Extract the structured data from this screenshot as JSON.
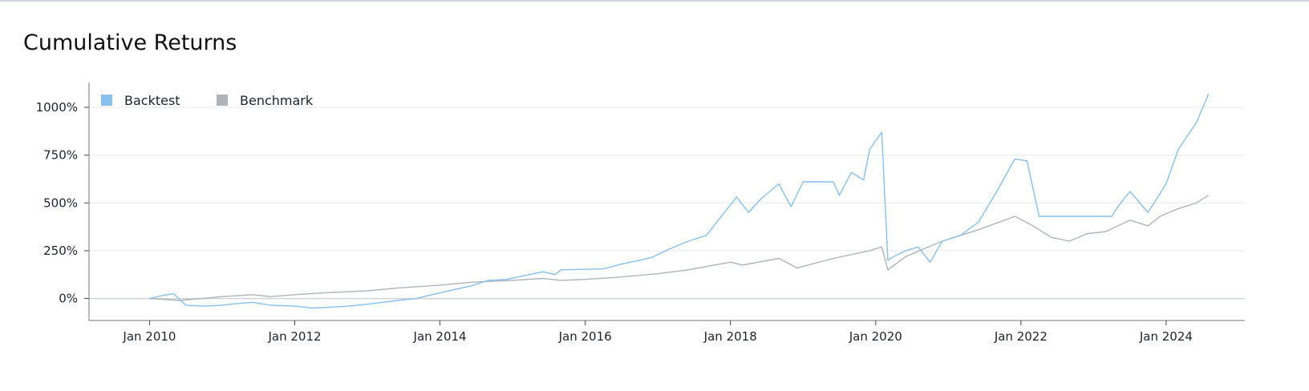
{
  "chart_data": {
    "type": "line",
    "title": "Cumulative Returns",
    "xlabel": "",
    "ylabel": "",
    "grid": "horizontal",
    "legend_position": "top-left",
    "x_ticks": [
      "Jan 2010",
      "Jan 2012",
      "Jan 2014",
      "Jan 2016",
      "Jan 2018",
      "Jan 2020",
      "Jan 2022",
      "Jan 2024"
    ],
    "y_ticks": [
      "0%",
      "250%",
      "500%",
      "750%",
      "1000%"
    ],
    "ylim": [
      -115,
      1130
    ],
    "xlim": [
      "2009-03",
      "2025-02"
    ],
    "series": [
      {
        "name": "Backtest",
        "color": "#86c0ec",
        "points": [
          [
            "2010-01",
            0
          ],
          [
            "2010-03",
            15
          ],
          [
            "2010-05",
            25
          ],
          [
            "2010-07",
            -35
          ],
          [
            "2010-10",
            -40
          ],
          [
            "2011-01",
            -35
          ],
          [
            "2011-03",
            -28
          ],
          [
            "2011-06",
            -20
          ],
          [
            "2011-09",
            -35
          ],
          [
            "2012-01",
            -40
          ],
          [
            "2012-04",
            -50
          ],
          [
            "2012-07",
            -45
          ],
          [
            "2012-10",
            -40
          ],
          [
            "2013-01",
            -30
          ],
          [
            "2013-06",
            -10
          ],
          [
            "2013-09",
            0
          ],
          [
            "2014-01",
            30
          ],
          [
            "2014-06",
            65
          ],
          [
            "2014-09",
            95
          ],
          [
            "2014-12",
            100
          ],
          [
            "2015-03",
            120
          ],
          [
            "2015-06",
            140
          ],
          [
            "2015-08",
            125
          ],
          [
            "2015-09",
            150
          ],
          [
            "2016-04",
            155
          ],
          [
            "2016-07",
            180
          ],
          [
            "2016-10",
            200
          ],
          [
            "2016-12",
            215
          ],
          [
            "2017-03",
            260
          ],
          [
            "2017-06",
            300
          ],
          [
            "2017-09",
            330
          ],
          [
            "2017-12",
            450
          ],
          [
            "2018-02",
            530
          ],
          [
            "2018-04",
            450
          ],
          [
            "2018-06",
            520
          ],
          [
            "2018-09",
            600
          ],
          [
            "2018-11",
            480
          ],
          [
            "2019-01",
            610
          ],
          [
            "2019-06",
            610
          ],
          [
            "2019-07",
            540
          ],
          [
            "2019-09",
            660
          ],
          [
            "2019-11",
            620
          ],
          [
            "2019-12",
            780
          ],
          [
            "2020-02",
            870
          ],
          [
            "2020-03",
            200
          ],
          [
            "2020-04",
            220
          ],
          [
            "2020-06",
            250
          ],
          [
            "2020-08",
            270
          ],
          [
            "2020-10",
            190
          ],
          [
            "2020-12",
            300
          ],
          [
            "2021-03",
            330
          ],
          [
            "2021-06",
            400
          ],
          [
            "2021-09",
            560
          ],
          [
            "2021-12",
            730
          ],
          [
            "2022-02",
            720
          ],
          [
            "2022-04",
            430
          ],
          [
            "2023-04",
            430
          ],
          [
            "2023-05",
            480
          ],
          [
            "2023-07",
            560
          ],
          [
            "2023-10",
            450
          ],
          [
            "2024-01",
            600
          ],
          [
            "2024-03",
            780
          ],
          [
            "2024-06",
            920
          ],
          [
            "2024-08",
            1070
          ]
        ]
      },
      {
        "name": "Benchmark",
        "color": "#aeb4ba",
        "points": [
          [
            "2010-01",
            0
          ],
          [
            "2010-06",
            -10
          ],
          [
            "2011-01",
            10
          ],
          [
            "2011-06",
            20
          ],
          [
            "2011-09",
            10
          ],
          [
            "2012-01",
            20
          ],
          [
            "2012-06",
            30
          ],
          [
            "2013-01",
            40
          ],
          [
            "2013-06",
            55
          ],
          [
            "2014-01",
            70
          ],
          [
            "2014-06",
            85
          ],
          [
            "2015-01",
            95
          ],
          [
            "2015-06",
            105
          ],
          [
            "2015-09",
            95
          ],
          [
            "2016-01",
            100
          ],
          [
            "2016-06",
            110
          ],
          [
            "2017-01",
            130
          ],
          [
            "2017-06",
            150
          ],
          [
            "2018-01",
            190
          ],
          [
            "2018-03",
            175
          ],
          [
            "2018-09",
            210
          ],
          [
            "2018-12",
            160
          ],
          [
            "2019-06",
            210
          ],
          [
            "2019-12",
            250
          ],
          [
            "2020-02",
            270
          ],
          [
            "2020-03",
            150
          ],
          [
            "2020-06",
            220
          ],
          [
            "2020-09",
            260
          ],
          [
            "2020-12",
            300
          ],
          [
            "2021-06",
            360
          ],
          [
            "2021-12",
            430
          ],
          [
            "2022-03",
            380
          ],
          [
            "2022-06",
            320
          ],
          [
            "2022-09",
            300
          ],
          [
            "2022-12",
            340
          ],
          [
            "2023-03",
            350
          ],
          [
            "2023-07",
            410
          ],
          [
            "2023-10",
            380
          ],
          [
            "2023-12",
            430
          ],
          [
            "2024-03",
            470
          ],
          [
            "2024-06",
            500
          ],
          [
            "2024-08",
            540
          ]
        ]
      }
    ]
  }
}
